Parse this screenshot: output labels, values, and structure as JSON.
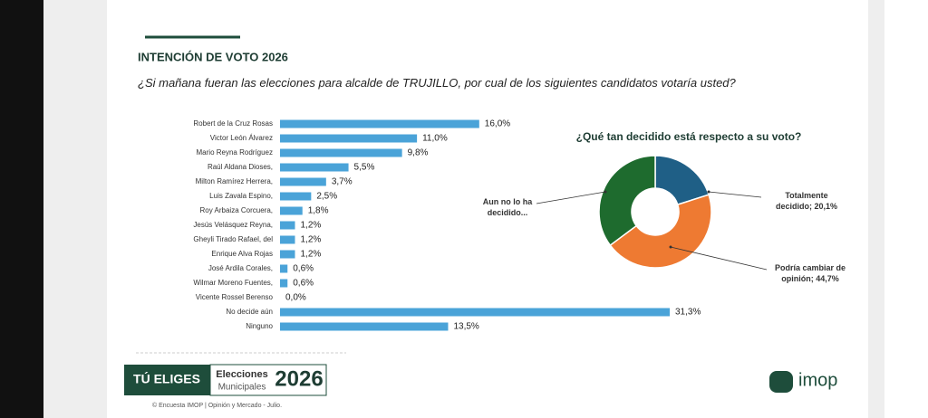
{
  "header": {
    "title": "INTENCIÓN DE VOTO 2026"
  },
  "chart_data": [
    {
      "type": "bar",
      "orientation": "horizontal",
      "title": "¿Si mañana fueran las elecciones para alcalde de TRUJILLO, por cual de los siguientes candidatos votaría usted?",
      "categories": [
        "Robert de la Cruz Rosas",
        "Victor León Álvarez",
        "Mario Reyna Rodríguez",
        "Raúl Aldana Dioses,",
        "Milton Ramírez Herrera,",
        "Luis Zavala Espino,",
        "Roy Arbaiza Corcuera,",
        "Jesús Velásquez Reyna,",
        "Gheyli Tirado Rafael, del",
        "Enrique Alva Rojas",
        "José Ardila Corales,",
        "Wilmar Moreno Fuentes,",
        "Vicente Rossel Berenso",
        "No decide aún",
        "Ninguno"
      ],
      "values": [
        16.0,
        11.0,
        9.8,
        5.5,
        3.7,
        2.5,
        1.8,
        1.2,
        1.2,
        1.2,
        0.6,
        0.6,
        0.0,
        31.3,
        13.5
      ],
      "value_labels": [
        "16,0%",
        "11,0%",
        "9,8%",
        "5,5%",
        "3,7%",
        "2,5%",
        "1,8%",
        "1,2%",
        "1,2%",
        "1,2%",
        "0,6%",
        "0,6%",
        "0,0%",
        "31,3%",
        "13,5%"
      ],
      "color": "#4aa3d8"
    },
    {
      "type": "donut",
      "title": "¿Qué tan decidido está respecto a su voto?",
      "categories": [
        "Totalmente decidido; 20,1%",
        "Podría cambiar de opinión; 44,7%",
        "Aun no lo ha decidido..."
      ],
      "values": [
        20.1,
        44.7,
        35.2
      ],
      "colors": [
        "#1f5f86",
        "#ee7a32",
        "#1e6b2e"
      ]
    }
  ],
  "footer": {
    "badge": "TÚ ELIGES",
    "line1": "Elecciones",
    "line2": "Municipales",
    "year": "2026",
    "credit": "© Encuesta IMOP | Opinión y Mercado - Julio.",
    "brand": "imop"
  }
}
